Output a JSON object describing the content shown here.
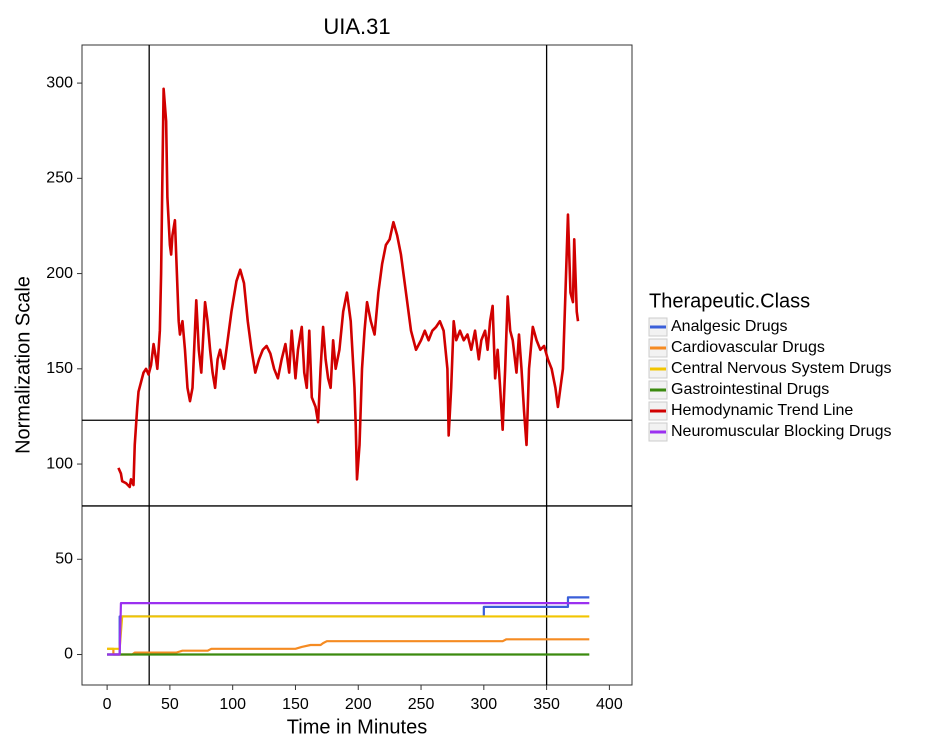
{
  "chart_data": {
    "type": "line",
    "title": "UIA.31",
    "x_label": "Time in Minutes",
    "y_label": "Normalization Scale",
    "legend_title": "Therapeutic.Class",
    "legend_position": "right",
    "xlim": [
      -20,
      418
    ],
    "ylim": [
      -16,
      320
    ],
    "xticks": [
      0,
      50,
      100,
      150,
      200,
      250,
      300,
      350,
      400
    ],
    "yticks": [
      0,
      50,
      100,
      150,
      200,
      250,
      300
    ],
    "reference_lines": {
      "x": [
        33.5,
        350
      ],
      "y": [
        123,
        78
      ]
    },
    "series": [
      {
        "name": "Analgesic Drugs",
        "color": "#3a5fd9",
        "x": [
          0,
          10,
          10,
          300,
          300,
          367,
          367,
          384
        ],
        "values": [
          0,
          0,
          20,
          20,
          25,
          25,
          30,
          30
        ]
      },
      {
        "name": "Cardiovascular Drugs",
        "color": "#f58b22",
        "x": [
          0,
          5,
          5,
          20,
          22,
          55,
          60,
          80,
          83,
          150,
          155,
          162,
          170,
          172,
          175,
          315,
          318,
          384
        ],
        "values": [
          3,
          3,
          0,
          0,
          1,
          1,
          2,
          2,
          3,
          3,
          4,
          5,
          5,
          6,
          7,
          7,
          8,
          8
        ]
      },
      {
        "name": "Central Nervous System Drugs",
        "color": "#f2c500",
        "x": [
          0,
          10,
          12,
          384
        ],
        "values": [
          3,
          3,
          20,
          20
        ]
      },
      {
        "name": "Gastrointestinal Drugs",
        "color": "#3b8a0f",
        "x": [
          0,
          384
        ],
        "values": [
          0,
          0
        ]
      },
      {
        "name": "Hemodynamic Trend Line",
        "color": "#d10000",
        "x": [
          9,
          11,
          12,
          15,
          18,
          19,
          21,
          22,
          24,
          25,
          27,
          29,
          31,
          33,
          35,
          37,
          39,
          40,
          42,
          43,
          44,
          45,
          47,
          48,
          50,
          51,
          52,
          54,
          55,
          57,
          58,
          60,
          62,
          64,
          66,
          68,
          71,
          73,
          75,
          78,
          80,
          82,
          84,
          86,
          88,
          90,
          93,
          96,
          99,
          103,
          106,
          109,
          112,
          115,
          118,
          121,
          124,
          127,
          130,
          133,
          136,
          139,
          142,
          145,
          147,
          150,
          152,
          155,
          157,
          159,
          161,
          163,
          166,
          168,
          170,
          172,
          174,
          176,
          178,
          180,
          182,
          185,
          188,
          191,
          194,
          197,
          198,
          199,
          201,
          203,
          205,
          207,
          210,
          213,
          216,
          219,
          222,
          225,
          228,
          231,
          234,
          238,
          242,
          246,
          250,
          253,
          256,
          259,
          262,
          265,
          268,
          271,
          272,
          274,
          276,
          278,
          281,
          284,
          287,
          290,
          293,
          296,
          298,
          301,
          303,
          305,
          307,
          309,
          311,
          313,
          315,
          317,
          319,
          321,
          323,
          326,
          328,
          330,
          332,
          334,
          336,
          339,
          342,
          345,
          348,
          351,
          354,
          357,
          359,
          361,
          363,
          365,
          367,
          369,
          371,
          372,
          374,
          375
        ],
        "values": [
          98,
          95,
          91,
          90,
          88,
          92,
          89,
          110,
          130,
          138,
          143,
          148,
          150,
          147,
          152,
          163,
          155,
          150,
          170,
          200,
          250,
          297,
          280,
          240,
          215,
          210,
          220,
          228,
          210,
          175,
          168,
          175,
          160,
          140,
          133,
          140,
          186,
          160,
          148,
          185,
          175,
          160,
          148,
          140,
          155,
          160,
          150,
          165,
          180,
          196,
          202,
          195,
          175,
          160,
          148,
          155,
          160,
          162,
          158,
          150,
          145,
          155,
          163,
          148,
          170,
          145,
          160,
          172,
          148,
          140,
          170,
          135,
          130,
          122,
          150,
          172,
          155,
          145,
          140,
          165,
          150,
          160,
          180,
          190,
          175,
          140,
          120,
          92,
          110,
          150,
          170,
          185,
          175,
          168,
          190,
          205,
          215,
          218,
          227,
          220,
          210,
          190,
          170,
          160,
          165,
          170,
          165,
          170,
          172,
          175,
          170,
          150,
          115,
          140,
          175,
          165,
          170,
          165,
          168,
          160,
          170,
          155,
          165,
          170,
          160,
          175,
          183,
          145,
          160,
          140,
          118,
          150,
          188,
          170,
          165,
          148,
          168,
          150,
          128,
          110,
          150,
          172,
          165,
          160,
          162,
          155,
          150,
          140,
          130,
          140,
          150,
          190,
          231,
          190,
          185,
          218,
          180,
          175
        ]
      },
      {
        "name": "Neuromuscular Blocking Drugs",
        "color": "#9b30f0",
        "x": [
          0,
          10,
          11,
          384
        ],
        "values": [
          0,
          0,
          27,
          27
        ]
      }
    ]
  }
}
